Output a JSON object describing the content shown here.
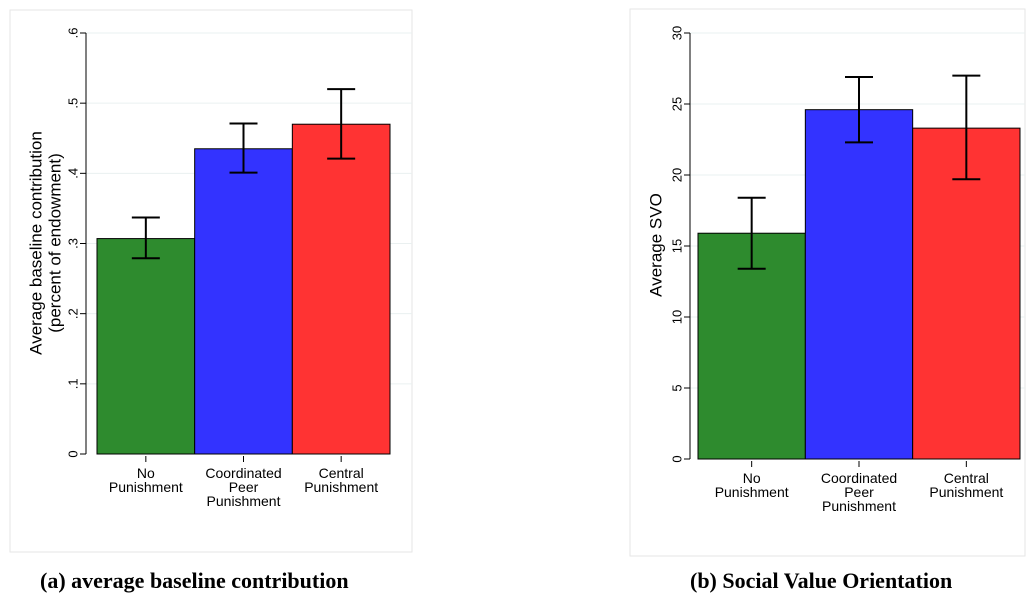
{
  "chart_data": [
    {
      "type": "bar",
      "panel_caption": "(a) average baseline contribution",
      "ylabel": [
        "Average baseline contribution",
        "(percent of endowment)"
      ],
      "xlabel": "",
      "categories": [
        [
          "No",
          "Punishment"
        ],
        [
          "Coordinated",
          "Peer",
          "Punishment"
        ],
        [
          "Central",
          "Punishment"
        ]
      ],
      "values": [
        0.307,
        0.435,
        0.47
      ],
      "error_low": [
        0.279,
        0.401,
        0.421
      ],
      "error_high": [
        0.337,
        0.471,
        0.52
      ],
      "colors": [
        "#2e8b2e",
        "#3333ff",
        "#ff3333"
      ],
      "ylim": [
        0,
        0.6
      ],
      "yticks": [
        0,
        0.1,
        0.2,
        0.3,
        0.4,
        0.5,
        0.6
      ],
      "ytick_labels": [
        "0",
        ".1",
        ".2",
        ".3",
        ".4",
        ".5",
        ".6"
      ],
      "grid": true,
      "legend": "none"
    },
    {
      "type": "bar",
      "panel_caption": "(b) Social Value Orientation",
      "ylabel": [
        "Average SVO"
      ],
      "xlabel": "",
      "categories": [
        [
          "No",
          "Punishment"
        ],
        [
          "Coordinated",
          "Peer",
          "Punishment"
        ],
        [
          "Central",
          "Punishment"
        ]
      ],
      "values": [
        15.9,
        24.6,
        23.3
      ],
      "error_low": [
        13.4,
        22.3,
        19.7
      ],
      "error_high": [
        18.4,
        26.9,
        27.0
      ],
      "colors": [
        "#2e8b2e",
        "#3333ff",
        "#ff3333"
      ],
      "ylim": [
        0,
        30
      ],
      "yticks": [
        0,
        5,
        10,
        15,
        20,
        25,
        30
      ],
      "ytick_labels": [
        "0",
        "5",
        "10",
        "15",
        "20",
        "25",
        "30"
      ],
      "grid": true,
      "legend": "none"
    }
  ]
}
